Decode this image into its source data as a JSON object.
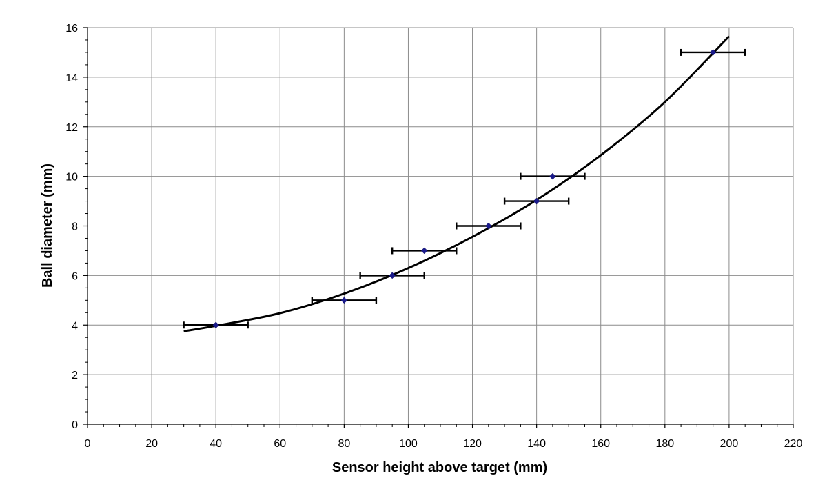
{
  "chart_data": {
    "type": "scatter",
    "title": "",
    "xlabel": "Sensor height above target (mm)",
    "ylabel": "Ball diameter (mm)",
    "xlim": [
      0,
      220
    ],
    "ylim": [
      0,
      16
    ],
    "x_ticks": [
      0,
      20,
      40,
      60,
      80,
      100,
      120,
      140,
      160,
      180,
      200,
      220
    ],
    "y_ticks": [
      0,
      2,
      4,
      6,
      8,
      10,
      12,
      14,
      16
    ],
    "grid": true,
    "legend": "none",
    "series": [
      {
        "marker": "diamond",
        "color": "#1a1a8c",
        "x": [
          40,
          80,
          95,
          105,
          125,
          140,
          145,
          195
        ],
        "y": [
          4,
          5,
          6,
          7,
          8,
          9,
          10,
          15
        ],
        "x_error": [
          10,
          10,
          10,
          10,
          10,
          10,
          10,
          10
        ]
      }
    ],
    "trendline": {
      "type": "polynomial",
      "color": "#000000",
      "x_range": [
        30,
        200
      ],
      "points": [
        {
          "x": 30,
          "y": 3.75
        },
        {
          "x": 40,
          "y": 3.97
        },
        {
          "x": 60,
          "y": 4.48
        },
        {
          "x": 80,
          "y": 5.27
        },
        {
          "x": 100,
          "y": 6.3
        },
        {
          "x": 120,
          "y": 7.56
        },
        {
          "x": 140,
          "y": 9.05
        },
        {
          "x": 160,
          "y": 10.85
        },
        {
          "x": 180,
          "y": 13.0
        },
        {
          "x": 200,
          "y": 15.65
        }
      ]
    }
  }
}
